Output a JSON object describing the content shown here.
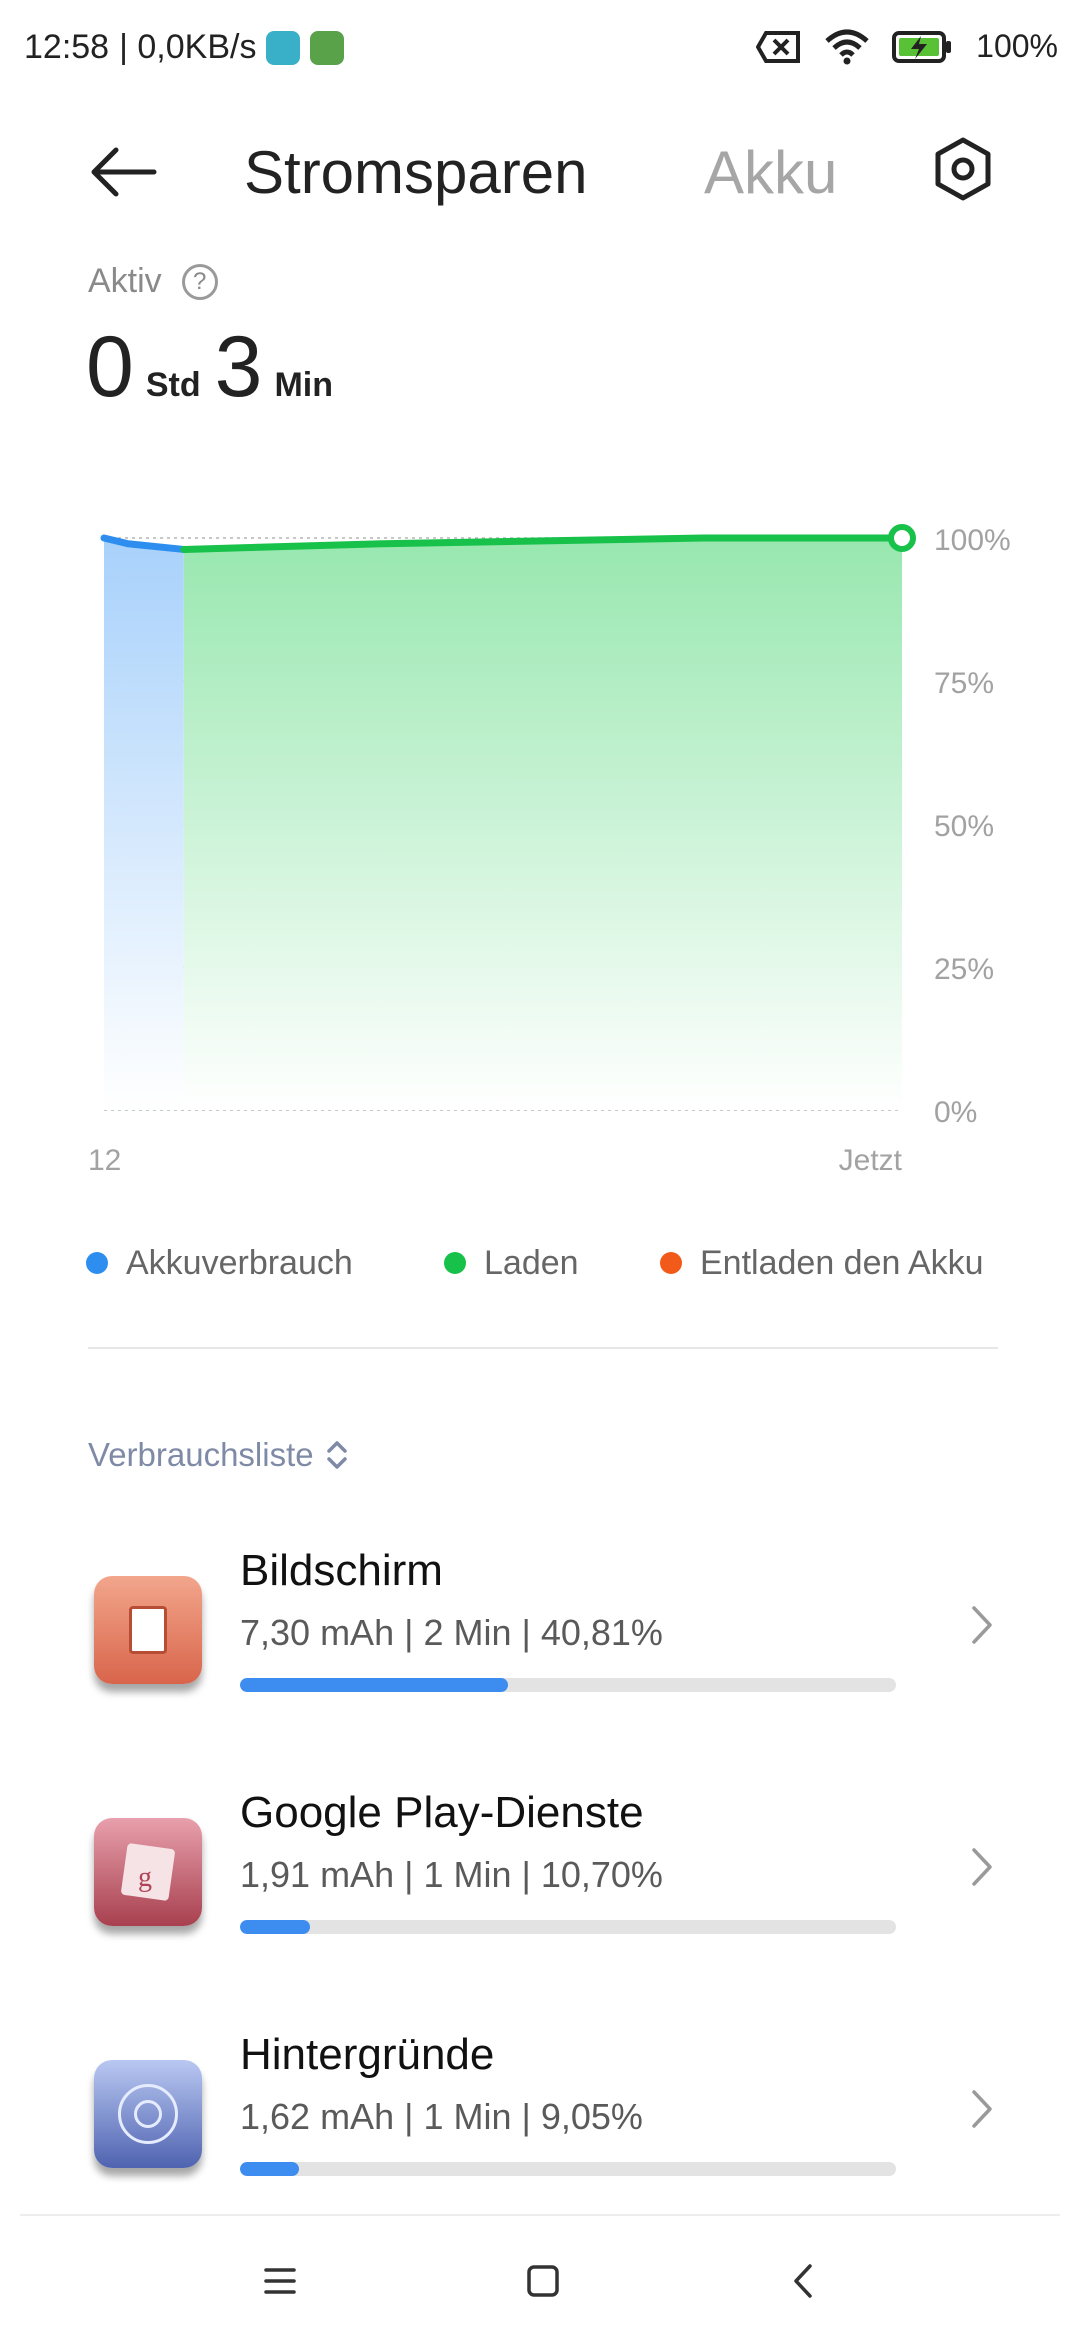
{
  "status_bar": {
    "time": "12:58",
    "speed": "| 0,0KB/s",
    "battery": "100%"
  },
  "header": {
    "title": "Stromsparen",
    "tab_akku": "Akku"
  },
  "active": {
    "label": "Aktiv",
    "hours": "0",
    "hours_unit": "Std",
    "minutes": "3",
    "minutes_unit": "Min"
  },
  "chart_data": {
    "type": "area",
    "y_ticks": [
      "100%",
      "75%",
      "50%",
      "25%",
      "0%"
    ],
    "ylim": [
      0,
      100
    ],
    "x_labels": [
      "12",
      "Jetzt"
    ],
    "grid": true,
    "series": [
      {
        "name": "Akkuverbrauch",
        "color": "#2d8ef0",
        "x": [
          0,
          0.03,
          0.1
        ],
        "y": [
          100,
          99,
          98
        ]
      },
      {
        "name": "Laden",
        "color": "#17c14a",
        "x": [
          0.1,
          0.35,
          0.75,
          1.0
        ],
        "y": [
          98,
          99,
          100,
          100
        ]
      }
    ]
  },
  "legend": [
    {
      "label": "Akkuverbrauch",
      "color": "#2d8ef0"
    },
    {
      "label": "Laden",
      "color": "#17c14a"
    },
    {
      "label": "Entladen den Akku",
      "color": "#f25a1a"
    }
  ],
  "usage": {
    "sort_label": "Verbrauchsliste",
    "items": [
      {
        "name": "Bildschirm",
        "detail": "7,30 mAh | 2 Min  | 40,81%",
        "percent": 40.81,
        "icon": "screen-icon"
      },
      {
        "name": "Google Play-Dienste",
        "detail": "1,91 mAh | 1 Min  | 10,70%",
        "percent": 10.7,
        "icon": "google-play-services-icon"
      },
      {
        "name": "Hintergründe",
        "detail": "1,62 mAh | 1 Min  | 9,05%",
        "percent": 9.05,
        "icon": "wallpaper-icon"
      }
    ]
  }
}
